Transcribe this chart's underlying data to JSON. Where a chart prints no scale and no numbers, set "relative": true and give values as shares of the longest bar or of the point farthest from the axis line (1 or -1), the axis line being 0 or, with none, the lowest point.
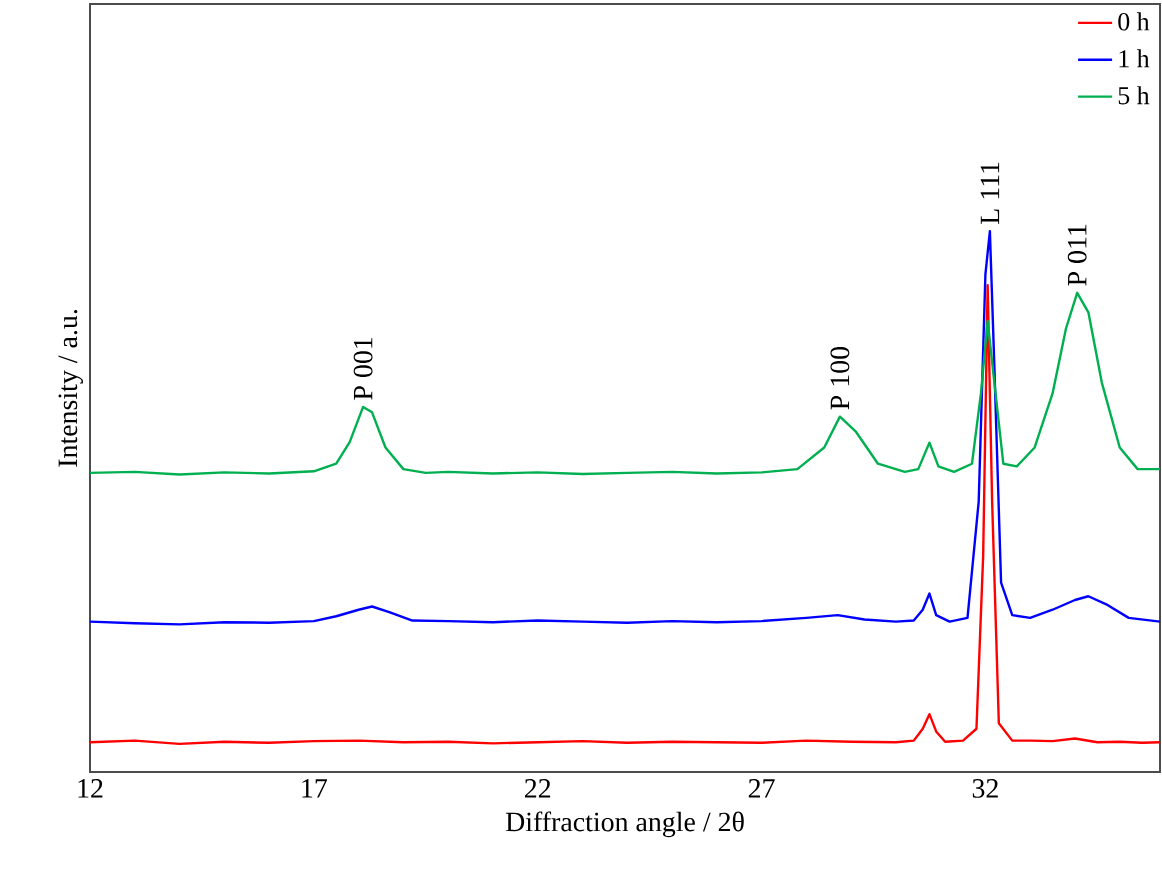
{
  "chart_data": {
    "type": "line",
    "relative": true,
    "xlabel": "Diffraction angle / 2θ",
    "ylabel": "Intensity / a.u.",
    "xlim": [
      12,
      35.9
    ],
    "xticks": [
      12,
      17,
      22,
      27,
      32
    ],
    "legend": "top right",
    "marker": "none",
    "line_style": "solid",
    "series": [
      {
        "name": "0 h",
        "color": "#ff0000",
        "x": [
          12,
          13,
          14,
          15,
          16,
          17,
          18,
          19,
          20,
          21,
          22,
          23,
          24,
          25,
          26,
          27,
          28,
          29,
          30,
          30.4,
          30.6,
          30.75,
          30.9,
          31.1,
          31.5,
          31.8,
          31.95,
          32.05,
          32.15,
          32.3,
          32.6,
          33,
          33.5,
          34,
          34.5,
          35,
          35.5,
          35.9
        ],
        "values": [
          0.055,
          0.058,
          0.052,
          0.056,
          0.054,
          0.057,
          0.058,
          0.055,
          0.056,
          0.053,
          0.055,
          0.057,
          0.054,
          0.056,
          0.055,
          0.054,
          0.058,
          0.056,
          0.055,
          0.058,
          0.08,
          0.107,
          0.075,
          0.056,
          0.058,
          0.08,
          0.4,
          0.9,
          0.5,
          0.09,
          0.058,
          0.058,
          0.057,
          0.062,
          0.055,
          0.056,
          0.054,
          0.055
        ]
      },
      {
        "name": "1 h",
        "color": "#0000ff",
        "x": [
          12,
          13,
          14,
          15,
          16,
          17,
          17.5,
          18,
          18.3,
          18.7,
          19.2,
          20,
          21,
          22,
          23,
          24,
          25,
          26,
          27,
          28,
          28.7,
          29.3,
          30,
          30.4,
          30.6,
          30.75,
          30.9,
          31.2,
          31.6,
          31.85,
          32.0,
          32.1,
          32.2,
          32.35,
          32.6,
          33,
          33.5,
          34,
          34.3,
          34.7,
          35.2,
          35.9
        ],
        "values": [
          0.278,
          0.275,
          0.273,
          0.277,
          0.276,
          0.279,
          0.288,
          0.3,
          0.306,
          0.295,
          0.28,
          0.279,
          0.277,
          0.28,
          0.278,
          0.276,
          0.279,
          0.277,
          0.279,
          0.285,
          0.29,
          0.282,
          0.278,
          0.28,
          0.3,
          0.33,
          0.29,
          0.278,
          0.285,
          0.5,
          0.92,
          1,
          0.75,
          0.35,
          0.29,
          0.285,
          0.3,
          0.318,
          0.325,
          0.31,
          0.285,
          0.278
        ]
      },
      {
        "name": "5 h",
        "color": "#00b050",
        "x": [
          12,
          13,
          14,
          15,
          16,
          17,
          17.5,
          17.8,
          18.1,
          18.3,
          18.6,
          19,
          19.5,
          20,
          21,
          22,
          23,
          24,
          25,
          26,
          27,
          27.8,
          28.4,
          28.75,
          29.1,
          29.6,
          30.2,
          30.5,
          30.75,
          30.95,
          31.3,
          31.7,
          31.9,
          32.05,
          32.2,
          32.4,
          32.7,
          33.1,
          33.5,
          33.8,
          34.05,
          34.3,
          34.6,
          35,
          35.4,
          35.9
        ],
        "values": [
          0.553,
          0.555,
          0.55,
          0.554,
          0.552,
          0.556,
          0.57,
          0.61,
          0.675,
          0.665,
          0.6,
          0.56,
          0.553,
          0.555,
          0.552,
          0.554,
          0.551,
          0.553,
          0.555,
          0.552,
          0.554,
          0.56,
          0.6,
          0.657,
          0.63,
          0.57,
          0.555,
          0.56,
          0.609,
          0.565,
          0.555,
          0.57,
          0.7,
          0.834,
          0.72,
          0.57,
          0.565,
          0.6,
          0.7,
          0.82,
          0.886,
          0.85,
          0.72,
          0.6,
          0.56,
          0.56
        ]
      }
    ],
    "annotations": [
      {
        "text": "P 001",
        "x": 18.1,
        "y": 0.675
      },
      {
        "text": "P 100",
        "x": 28.75,
        "y": 0.657
      },
      {
        "text": "L 111",
        "x": 32.1,
        "y": 1
      },
      {
        "text": "P 011",
        "x": 34.05,
        "y": 0.886
      }
    ]
  }
}
